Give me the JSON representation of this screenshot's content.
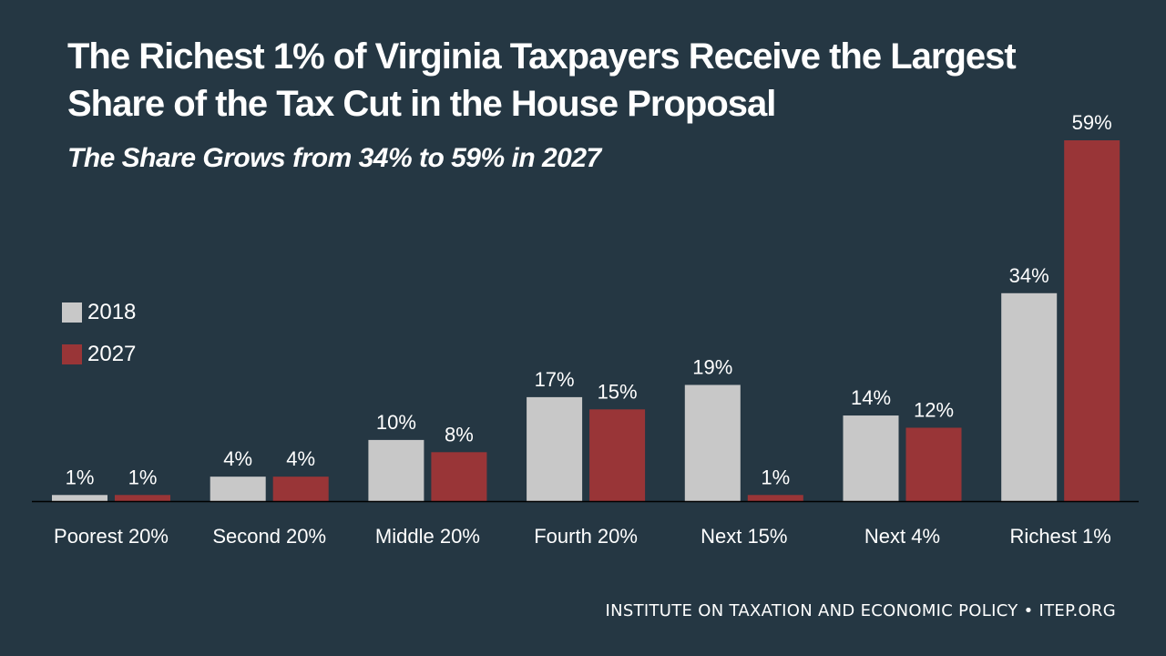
{
  "header": {
    "title": "The Richest 1% of Virginia Taxpayers Receive the Largest Share of the Tax Cut in the House Proposal",
    "subtitle": "The Share Grows from 34% to 59% in 2027"
  },
  "legend": [
    {
      "label": "2018",
      "color": "#c8c8c8"
    },
    {
      "label": "2027",
      "color": "#993537"
    }
  ],
  "footer": {
    "text": "INSTITUTE ON TAXATION AND ECONOMIC POLICY • ITEP.ORG"
  },
  "colors": {
    "background": "#253743",
    "series_2018": "#c8c8c8",
    "series_2027": "#993537",
    "axis": "#000000",
    "text": "#ffffff"
  },
  "chart_data": {
    "type": "bar",
    "title": "The Richest 1% of Virginia Taxpayers Receive the Largest Share of the Tax Cut in the House Proposal",
    "subtitle": "The Share Grows from 34% to 59% in 2027",
    "categories": [
      "Poorest 20%",
      "Second 20%",
      "Middle 20%",
      "Fourth 20%",
      "Next 15%",
      "Next 4%",
      "Richest 1%"
    ],
    "series": [
      {
        "name": "2018",
        "values": [
          1,
          4,
          10,
          17,
          19,
          14,
          34
        ],
        "labels": [
          "1%",
          "4%",
          "10%",
          "17%",
          "19%",
          "14%",
          "34%"
        ]
      },
      {
        "name": "2027",
        "values": [
          1,
          4,
          8,
          15,
          1,
          12,
          59
        ],
        "labels": [
          "1%",
          "4%",
          "8%",
          "15%",
          "1%",
          "12%",
          "59%"
        ]
      }
    ],
    "xlabel": "",
    "ylabel": "",
    "ylim": [
      0,
      59
    ],
    "grid": false,
    "legend_position": "left"
  }
}
